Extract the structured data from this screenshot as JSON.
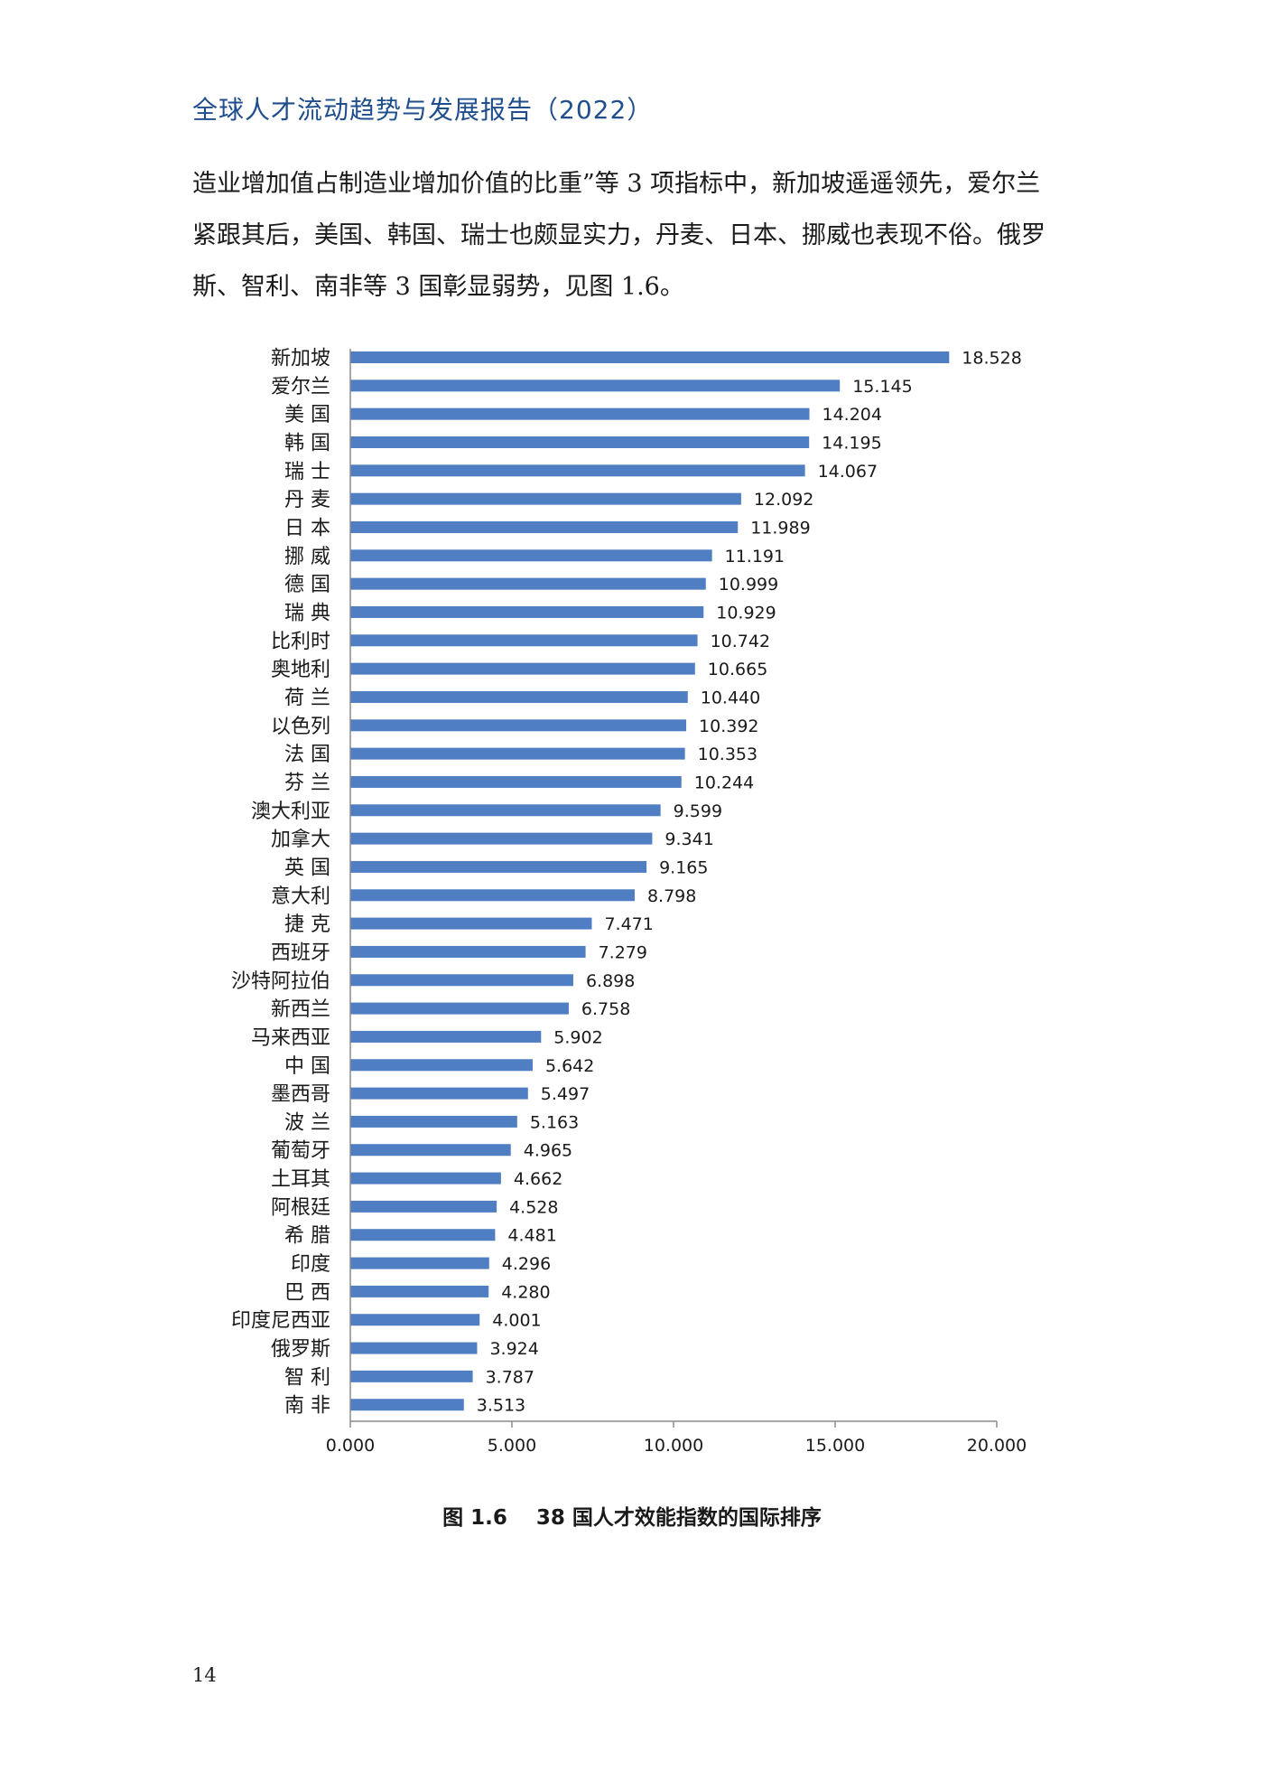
{
  "header": {
    "title": "全球人才流动趋势与发展报告（2022）"
  },
  "body": {
    "lines": [
      "造业增加值占制造业增加价值的比重”等 3 项指标中，新加坡遥遥领先，爱尔兰",
      "紧跟其后，美国、韩国、瑞士也颇显实力，丹麦、日本、挪威也表现不俗。俄罗",
      "斯、智利、南非等 3 国彰显弱势，见图 1.6。"
    ]
  },
  "figure": {
    "caption_number": "图 1.6",
    "caption_title": "38 国人才效能指数的国际排序"
  },
  "chart_data": {
    "type": "bar",
    "orientation": "horizontal",
    "bar_color": "#4f7ec2",
    "categories": [
      "新加坡",
      "爱尔兰",
      "美 国",
      "韩 国",
      "瑞 士",
      "丹 麦",
      "日 本",
      "挪 威",
      "德 国",
      "瑞 典",
      "比利时",
      "奥地利",
      "荷 兰",
      "以色列",
      "法 国",
      "芬 兰",
      "澳大利亚",
      "加拿大",
      "英 国",
      "意大利",
      "捷 克",
      "西班牙",
      "沙特阿拉伯",
      "新西兰",
      "马来西亚",
      "中 国",
      "墨西哥",
      "波 兰",
      "葡萄牙",
      "土耳其",
      "阿根廷",
      "希 腊",
      "印度",
      "巴 西",
      "印度尼西亚",
      "俄罗斯",
      "智 利",
      "南 非"
    ],
    "values": [
      18.528,
      15.145,
      14.204,
      14.195,
      14.067,
      12.092,
      11.989,
      11.191,
      10.999,
      10.929,
      10.742,
      10.665,
      10.44,
      10.392,
      10.353,
      10.244,
      9.599,
      9.341,
      9.165,
      8.798,
      7.471,
      7.279,
      6.898,
      6.758,
      5.902,
      5.642,
      5.497,
      5.163,
      4.965,
      4.662,
      4.528,
      4.481,
      4.296,
      4.28,
      4.001,
      3.924,
      3.787,
      3.513
    ],
    "value_labels": [
      "18.528",
      "15.145",
      "14.204",
      "14.195",
      "14.067",
      "12.092",
      "11.989",
      "11.191",
      "10.999",
      "10.929",
      "10.742",
      "10.665",
      "10.440",
      "10.392",
      "10.353",
      "10.244",
      "9.599",
      "9.341",
      "9.165",
      "8.798",
      "7.471",
      "7.279",
      "6.898",
      "6.758",
      "5.902",
      "5.642",
      "5.497",
      "5.163",
      "4.965",
      "4.662",
      "4.528",
      "4.481",
      "4.296",
      "4.280",
      "4.001",
      "3.924",
      "3.787",
      "3.513"
    ],
    "xlim": [
      0,
      20
    ],
    "xticks": [
      0,
      5,
      10,
      15,
      20
    ],
    "xtick_labels": [
      "0.000",
      "5.000",
      "10.000",
      "15.000",
      "20.000"
    ],
    "grid": false,
    "legend": "none"
  },
  "footer": {
    "page_number": "14"
  }
}
